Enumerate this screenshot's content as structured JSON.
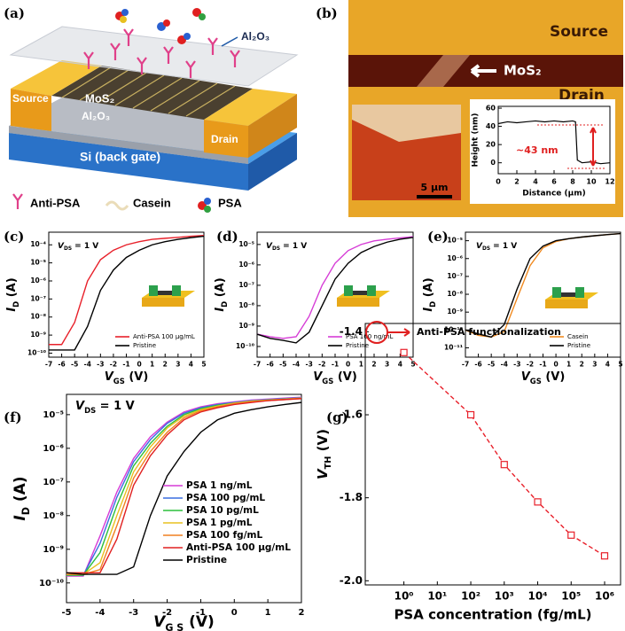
{
  "schematic": {
    "panel_label": "(a)",
    "labels": {
      "top_oxide": "Al₂O₃",
      "source": "Source",
      "channel": "MoS₂",
      "gate_oxide": "Al₂O₃",
      "drain": "Drain",
      "substrate": "Si (back gate)"
    },
    "legend": [
      "Anti-PSA",
      "Casein",
      "PSA"
    ]
  },
  "afm_image": {
    "panel_label": "(b)",
    "source": "Source",
    "channel": "MoS₂",
    "drain": "Drain",
    "scale_bar": "5 μm"
  },
  "chart_data": [
    {
      "type": "line",
      "xlabel": "Distance (μm)",
      "ylabel": "Height (nm)",
      "annotation": "~43 nm",
      "x": [
        0,
        1,
        2,
        3,
        4,
        5,
        6,
        7,
        8,
        8.3,
        8.5,
        9,
        10,
        11,
        12
      ],
      "series": [
        {
          "color": "#000000",
          "values": [
            43,
            45,
            44,
            45,
            46,
            45,
            46,
            45,
            46,
            45,
            3,
            0,
            1,
            -1,
            0
          ]
        }
      ],
      "xlim": [
        0,
        12
      ],
      "ylim": [
        -12,
        62
      ],
      "xticks": [
        0,
        2,
        4,
        6,
        8,
        10,
        12
      ],
      "yticks": [
        0,
        20,
        40,
        60
      ]
    },
    {
      "type": "line",
      "panel_label": "(c)",
      "condition": [
        "V",
        "DS",
        " = 1 V"
      ],
      "xlabel": [
        "V",
        "GS",
        " (V)"
      ],
      "ylabel": [
        "I",
        "D",
        " (A)"
      ],
      "y_scale": "log",
      "x": [
        -7,
        -6,
        -5,
        -4,
        -3,
        -2,
        -1,
        0,
        1,
        2,
        3,
        4,
        5
      ],
      "series": [
        {
          "name": "Anti-PSA 100 μg/mL",
          "color": "#e8202a",
          "values": [
            3e-10,
            3e-10,
            5e-09,
            1e-06,
            1.5e-05,
            5e-05,
            0.0001,
            0.00015,
            0.0002,
            0.00023,
            0.00026,
            0.0003,
            0.00033
          ]
        },
        {
          "name": "Pristine",
          "color": "#000000",
          "values": [
            1.5e-10,
            1.5e-10,
            1.5e-10,
            3e-09,
            3e-07,
            4e-06,
            2e-05,
            5e-05,
            0.0001,
            0.00015,
            0.0002,
            0.00025,
            0.0003
          ]
        }
      ],
      "xlim": [
        -7,
        5
      ],
      "ylim": [
        6e-11,
        0.0005
      ],
      "xticks": [
        -7,
        -6,
        -5,
        -4,
        -3,
        -2,
        -1,
        0,
        1,
        2,
        3,
        4,
        5
      ],
      "yticks": [
        {
          "value": 1e-10,
          "label": "10⁻¹⁰"
        },
        {
          "value": 1e-09,
          "label": "10⁻⁹"
        },
        {
          "value": 1e-08,
          "label": "10⁻⁸"
        },
        {
          "value": 1e-07,
          "label": "10⁻⁷"
        },
        {
          "value": 1e-06,
          "label": "10⁻⁶"
        },
        {
          "value": 1e-05,
          "label": "10⁻⁵"
        },
        {
          "value": 0.0001,
          "label": "10⁻⁴"
        }
      ],
      "legend": "lower right"
    },
    {
      "type": "line",
      "panel_label": "(d)",
      "condition": [
        "V",
        "DS",
        " = 1 V"
      ],
      "xlabel": [
        "V",
        "GS",
        " (V)"
      ],
      "ylabel": [
        "I",
        "D",
        " (A)"
      ],
      "y_scale": "log",
      "x": [
        -7,
        -6,
        -5,
        -4,
        -3,
        -2,
        -1,
        0,
        1,
        2,
        3,
        4,
        5
      ],
      "series": [
        {
          "name": "PSA 100 ng/mL",
          "color": "#d63cd6",
          "values": [
            4e-10,
            3e-10,
            2.5e-10,
            3e-10,
            3e-09,
            1e-07,
            1.2e-06,
            5e-06,
            1e-05,
            1.5e-05,
            1.8e-05,
            2.1e-05,
            2.4e-05
          ]
        },
        {
          "name": "Pristine",
          "color": "#000000",
          "values": [
            4e-10,
            2.5e-10,
            2e-10,
            1.5e-10,
            5e-10,
            1e-08,
            2e-07,
            1.2e-06,
            4e-06,
            8e-06,
            1.3e-05,
            1.8e-05,
            2.2e-05
          ]
        }
      ],
      "xlim": [
        -7,
        5
      ],
      "ylim": [
        3e-11,
        4e-05
      ],
      "xticks": [
        -7,
        -6,
        -5,
        -4,
        -3,
        -2,
        -1,
        0,
        1,
        2,
        3,
        4,
        5
      ],
      "yticks": [
        {
          "value": 1e-10,
          "label": "10⁻¹⁰"
        },
        {
          "value": 1e-09,
          "label": "10⁻⁹"
        },
        {
          "value": 1e-08,
          "label": "10⁻⁸"
        },
        {
          "value": 1e-07,
          "label": "10⁻⁷"
        },
        {
          "value": 1e-06,
          "label": "10⁻⁶"
        },
        {
          "value": 1e-05,
          "label": "10⁻⁵"
        }
      ],
      "legend": "lower right"
    },
    {
      "type": "line",
      "panel_label": "(e)",
      "condition": [
        "V",
        "DS",
        " = 1 V"
      ],
      "xlabel": [
        "V",
        "GS",
        " (V)"
      ],
      "ylabel": [
        "I",
        "D",
        " (A)"
      ],
      "y_scale": "log",
      "x": [
        -7,
        -6,
        -5,
        -4,
        -3,
        -2,
        -1,
        0,
        1,
        2,
        3,
        4,
        5
      ],
      "series": [
        {
          "name": "Casein",
          "color": "#f08a20",
          "values": [
            1e-10,
            5e-11,
            4e-11,
            8e-11,
            6e-09,
            4e-07,
            4e-06,
            9e-06,
            1.3e-05,
            1.6e-05,
            1.9e-05,
            2.2e-05,
            2.5e-05
          ]
        },
        {
          "name": "Pristine",
          "color": "#000000",
          "values": [
            1e-10,
            6e-11,
            4e-11,
            2e-10,
            2e-08,
            1e-06,
            5e-06,
            1e-05,
            1.3e-05,
            1.6e-05,
            1.9e-05,
            2.2e-05,
            2.5e-05
          ]
        }
      ],
      "xlim": [
        -7,
        5
      ],
      "ylim": [
        3e-12,
        3e-05
      ],
      "xticks": [
        -7,
        -6,
        -5,
        -4,
        -3,
        -2,
        -1,
        0,
        1,
        2,
        3,
        4,
        5
      ],
      "yticks": [
        {
          "value": 1e-11,
          "label": "10⁻¹¹"
        },
        {
          "value": 1e-10,
          "label": "10⁻¹⁰"
        },
        {
          "value": 1e-09,
          "label": "10⁻⁹"
        },
        {
          "value": 1e-08,
          "label": "10⁻⁸"
        },
        {
          "value": 1e-07,
          "label": "10⁻⁷"
        },
        {
          "value": 1e-06,
          "label": "10⁻⁶"
        },
        {
          "value": 1e-05,
          "label": "10⁻⁵"
        }
      ],
      "legend": "lower right"
    },
    {
      "type": "line",
      "panel_label": "(f)",
      "condition": [
        "V",
        "DS",
        " = 1 V"
      ],
      "xlabel": [
        "V",
        "G S",
        " (V)"
      ],
      "ylabel": [
        "I",
        "D",
        " (A)"
      ],
      "y_scale": "log",
      "x": [
        -5,
        -4.5,
        -4,
        -3.5,
        -3,
        -2.5,
        -2,
        -1.5,
        -1,
        -0.5,
        0,
        0.5,
        1,
        1.5,
        2
      ],
      "series": [
        {
          "name": "PSA 1 ng/mL",
          "color": "#d63cd6",
          "values": [
            1.6e-10,
            1.6e-10,
            2.5e-09,
            5e-08,
            5e-07,
            2.2e-06,
            6e-06,
            1.2e-05,
            1.7e-05,
            2.1e-05,
            2.4e-05,
            2.7e-05,
            2.9e-05,
            3.1e-05,
            3.3e-05
          ]
        },
        {
          "name": "PSA 100 pg/mL",
          "color": "#3a6fe0",
          "values": [
            1.7e-10,
            1.7e-10,
            1.5e-09,
            3.5e-08,
            4e-07,
            1.8e-06,
            5.5e-06,
            1.1e-05,
            1.6e-05,
            2e-05,
            2.3e-05,
            2.6e-05,
            2.8e-05,
            3e-05,
            3.2e-05
          ]
        },
        {
          "name": "PSA 10 pg/mL",
          "color": "#2cbf3c",
          "values": [
            1.7e-10,
            1.7e-10,
            8e-10,
            2e-08,
            3e-07,
            1.4e-06,
            4.5e-06,
            1e-05,
            1.5e-05,
            1.9e-05,
            2.2e-05,
            2.5e-05,
            2.7e-05,
            2.9e-05,
            3.1e-05
          ]
        },
        {
          "name": "PSA 1 pg/mL",
          "color": "#e8c020",
          "values": [
            1.8e-10,
            1.8e-10,
            4e-10,
            1e-08,
            2e-07,
            1.1e-06,
            4e-06,
            9e-06,
            1.4e-05,
            1.8e-05,
            2.2e-05,
            2.5e-05,
            2.7e-05,
            2.9e-05,
            3.1e-05
          ]
        },
        {
          "name": "PSA 100 fg/mL",
          "color": "#f08020",
          "values": [
            1.8e-10,
            1.8e-10,
            2.5e-10,
            5e-09,
            1.3e-07,
            8e-07,
            3e-06,
            8e-06,
            1.3e-05,
            1.7e-05,
            2.1e-05,
            2.4e-05,
            2.6e-05,
            2.8e-05,
            3e-05
          ]
        },
        {
          "name": "Anti-PSA 100 μg/mL",
          "color": "#e02020",
          "values": [
            2e-10,
            2e-10,
            2e-10,
            2e-09,
            8e-08,
            6e-07,
            2.5e-06,
            7e-06,
            1.2e-05,
            1.6e-05,
            2e-05,
            2.3e-05,
            2.6e-05,
            2.8e-05,
            3e-05
          ]
        },
        {
          "name": "Pristine",
          "color": "#000000",
          "values": [
            2e-10,
            1.8e-10,
            1.8e-10,
            1.8e-10,
            3e-10,
            1e-08,
            1.5e-07,
            8e-07,
            3e-06,
            7e-06,
            1.1e-05,
            1.4e-05,
            1.7e-05,
            2e-05,
            2.3e-05
          ]
        }
      ],
      "xlim": [
        -5,
        2
      ],
      "ylim": [
        2.6e-11,
        4e-05
      ],
      "xticks": [
        -5,
        -4,
        -3,
        -2,
        -1,
        0,
        1,
        2
      ],
      "yticks": [
        {
          "value": 1e-10,
          "label": "10⁻¹⁰"
        },
        {
          "value": 1e-09,
          "label": "10⁻⁹"
        },
        {
          "value": 1e-08,
          "label": "10⁻⁸"
        },
        {
          "value": 1e-07,
          "label": "10⁻⁷"
        },
        {
          "value": 1e-06,
          "label": "10⁻⁶"
        },
        {
          "value": 1e-05,
          "label": "10⁻⁵"
        }
      ],
      "legend": "center right"
    },
    {
      "type": "line",
      "panel_label": "(g)",
      "xlabel": "PSA concentration (fg/mL)",
      "ylabel": [
        "V",
        "TH",
        " (V)"
      ],
      "annotation": "Anti-PSA functionalization",
      "x_scale": "log",
      "marker": "square",
      "line_style": "dashed",
      "x": [
        1,
        100,
        1000,
        10000,
        100000,
        1000000
      ],
      "series": [
        {
          "color": "#e8202a",
          "values": [
            -1.45,
            -1.6,
            -1.72,
            -1.81,
            -1.89,
            -1.94
          ]
        }
      ],
      "xlim": [
        0.07,
        3000000
      ],
      "ylim": [
        -2.01,
        -1.38
      ],
      "xticks": [
        {
          "value": 1,
          "label": "10⁰"
        },
        {
          "value": 10,
          "label": "10¹"
        },
        {
          "value": 100,
          "label": "10²"
        },
        {
          "value": 1000,
          "label": "10³"
        },
        {
          "value": 10000,
          "label": "10⁴"
        },
        {
          "value": 100000,
          "label": "10⁵"
        },
        {
          "value": 1000000,
          "label": "10⁶"
        }
      ],
      "yticks": [
        {
          "value": -2,
          "label": "-2.0"
        },
        {
          "value": -1.8,
          "label": "-1.8"
        },
        {
          "value": -1.6,
          "label": "-1.6"
        },
        {
          "value": -1.4,
          "label": "-1.4"
        }
      ]
    }
  ]
}
